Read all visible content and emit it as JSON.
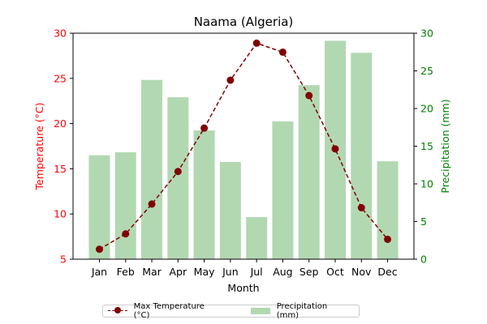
{
  "chart_data": {
    "type": "bar+line",
    "title": "Naama (Algeria)",
    "xlabel": "Month",
    "categories": [
      "Jan",
      "Feb",
      "Mar",
      "Apr",
      "May",
      "Jun",
      "Jul",
      "Aug",
      "Sep",
      "Oct",
      "Nov",
      "Dec"
    ],
    "left_axis": {
      "label": "Temperature (°C)",
      "ylim": [
        5,
        30
      ],
      "ticks": [
        5,
        10,
        15,
        20,
        25,
        30
      ],
      "color": "#ff0000"
    },
    "right_axis": {
      "label": "Precipitation (mm)",
      "ylim": [
        0,
        30
      ],
      "ticks": [
        0,
        5,
        10,
        15,
        20,
        25,
        30
      ],
      "color": "#008000"
    },
    "series": [
      {
        "name": "Max Temperature (°C)",
        "type": "line",
        "axis": "left",
        "color": "#800000",
        "style": "dashed",
        "marker": "circle",
        "values": [
          6.1,
          7.8,
          11.1,
          14.7,
          19.5,
          24.8,
          28.9,
          27.9,
          23.1,
          17.2,
          10.7,
          7.2
        ]
      },
      {
        "name": "Precipitation (mm)",
        "type": "bar",
        "axis": "right",
        "color": "#b2d8b2",
        "values": [
          13.8,
          14.2,
          23.8,
          21.5,
          17.1,
          12.9,
          5.6,
          18.3,
          23.1,
          29.0,
          27.4,
          13.0
        ]
      }
    ],
    "legend_position": "bottom-center",
    "grid": false
  }
}
